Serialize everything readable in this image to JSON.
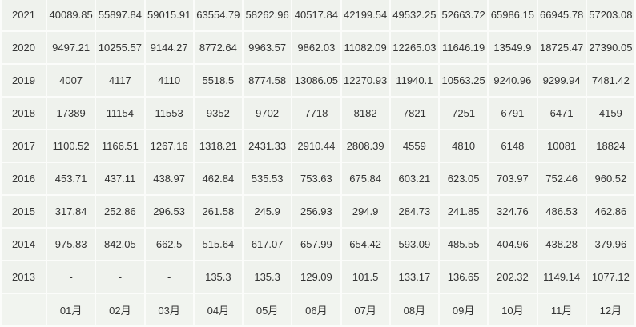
{
  "table": {
    "months": [
      "01月",
      "02月",
      "03月",
      "04月",
      "05月",
      "06月",
      "07月",
      "08月",
      "09月",
      "10月",
      "11月",
      "12月"
    ],
    "rows": [
      {
        "year": "2021",
        "values": [
          "40089.85",
          "55897.84",
          "59015.91",
          "63554.79",
          "58262.96",
          "40517.84",
          "42199.54",
          "49532.25",
          "52663.72",
          "65986.15",
          "66945.78",
          "57203.08"
        ]
      },
      {
        "year": "2020",
        "values": [
          "9497.21",
          "10255.57",
          "9144.27",
          "8772.64",
          "9963.57",
          "9862.03",
          "11082.09",
          "12265.03",
          "11646.19",
          "13549.9",
          "18725.47",
          "27390.05"
        ]
      },
      {
        "year": "2019",
        "values": [
          "4007",
          "4117",
          "4110",
          "5518.5",
          "8774.58",
          "13086.05",
          "12270.93",
          "11940.1",
          "10563.25",
          "9240.96",
          "9299.94",
          "7481.42"
        ]
      },
      {
        "year": "2018",
        "values": [
          "17389",
          "11154",
          "11553",
          "9352",
          "9702",
          "7718",
          "8182",
          "7821",
          "7251",
          "6791",
          "6471",
          "4159"
        ]
      },
      {
        "year": "2017",
        "values": [
          "1100.52",
          "1166.51",
          "1267.16",
          "1318.21",
          "2431.33",
          "2910.44",
          "2808.39",
          "4559",
          "4810",
          "6148",
          "10081",
          "18824"
        ]
      },
      {
        "year": "2016",
        "values": [
          "453.71",
          "437.11",
          "438.97",
          "462.84",
          "535.53",
          "753.63",
          "675.84",
          "603.21",
          "623.05",
          "703.97",
          "752.46",
          "960.52"
        ]
      },
      {
        "year": "2015",
        "values": [
          "317.84",
          "252.86",
          "296.53",
          "261.58",
          "245.9",
          "256.93",
          "294.9",
          "284.73",
          "241.85",
          "324.76",
          "486.53",
          "462.86"
        ]
      },
      {
        "year": "2014",
        "values": [
          "975.83",
          "842.05",
          "662.5",
          "515.64",
          "617.07",
          "657.99",
          "654.42",
          "593.09",
          "485.55",
          "404.96",
          "438.28",
          "379.96"
        ]
      },
      {
        "year": "2013",
        "values": [
          "-",
          "-",
          "-",
          "135.3",
          "135.3",
          "129.09",
          "101.5",
          "133.17",
          "136.65",
          "202.32",
          "1149.14",
          "1077.12"
        ]
      }
    ]
  }
}
